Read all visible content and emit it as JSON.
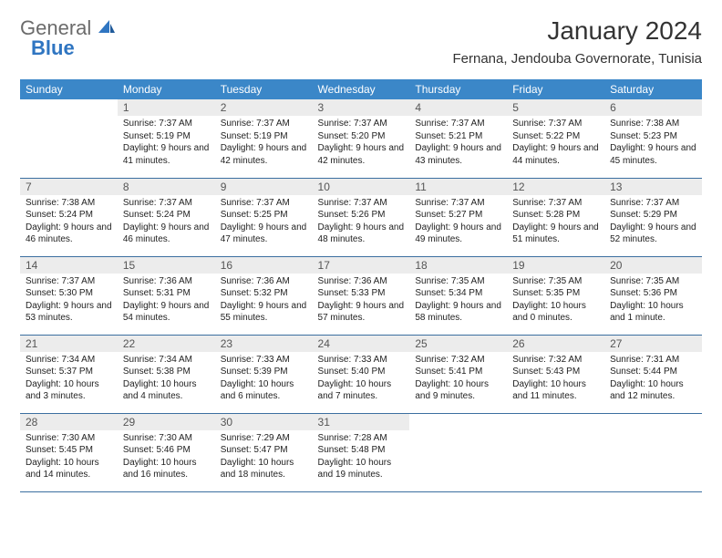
{
  "logo": {
    "general": "General",
    "blue": "Blue"
  },
  "title": "January 2024",
  "location": "Fernana, Jendouba Governorate, Tunisia",
  "colors": {
    "header_bg": "#3b87c8",
    "header_text": "#ffffff",
    "daynum_bg": "#ececec",
    "daynum_text": "#555555",
    "border": "#3b6fa0",
    "logo_gray": "#6b6b6b",
    "logo_blue": "#2f75c1"
  },
  "weekdays": [
    "Sunday",
    "Monday",
    "Tuesday",
    "Wednesday",
    "Thursday",
    "Friday",
    "Saturday"
  ],
  "weeks": [
    [
      {
        "day": "",
        "sunrise": "",
        "sunset": "",
        "daylight": ""
      },
      {
        "day": "1",
        "sunrise": "Sunrise: 7:37 AM",
        "sunset": "Sunset: 5:19 PM",
        "daylight": "Daylight: 9 hours and 41 minutes."
      },
      {
        "day": "2",
        "sunrise": "Sunrise: 7:37 AM",
        "sunset": "Sunset: 5:19 PM",
        "daylight": "Daylight: 9 hours and 42 minutes."
      },
      {
        "day": "3",
        "sunrise": "Sunrise: 7:37 AM",
        "sunset": "Sunset: 5:20 PM",
        "daylight": "Daylight: 9 hours and 42 minutes."
      },
      {
        "day": "4",
        "sunrise": "Sunrise: 7:37 AM",
        "sunset": "Sunset: 5:21 PM",
        "daylight": "Daylight: 9 hours and 43 minutes."
      },
      {
        "day": "5",
        "sunrise": "Sunrise: 7:37 AM",
        "sunset": "Sunset: 5:22 PM",
        "daylight": "Daylight: 9 hours and 44 minutes."
      },
      {
        "day": "6",
        "sunrise": "Sunrise: 7:38 AM",
        "sunset": "Sunset: 5:23 PM",
        "daylight": "Daylight: 9 hours and 45 minutes."
      }
    ],
    [
      {
        "day": "7",
        "sunrise": "Sunrise: 7:38 AM",
        "sunset": "Sunset: 5:24 PM",
        "daylight": "Daylight: 9 hours and 46 minutes."
      },
      {
        "day": "8",
        "sunrise": "Sunrise: 7:37 AM",
        "sunset": "Sunset: 5:24 PM",
        "daylight": "Daylight: 9 hours and 46 minutes."
      },
      {
        "day": "9",
        "sunrise": "Sunrise: 7:37 AM",
        "sunset": "Sunset: 5:25 PM",
        "daylight": "Daylight: 9 hours and 47 minutes."
      },
      {
        "day": "10",
        "sunrise": "Sunrise: 7:37 AM",
        "sunset": "Sunset: 5:26 PM",
        "daylight": "Daylight: 9 hours and 48 minutes."
      },
      {
        "day": "11",
        "sunrise": "Sunrise: 7:37 AM",
        "sunset": "Sunset: 5:27 PM",
        "daylight": "Daylight: 9 hours and 49 minutes."
      },
      {
        "day": "12",
        "sunrise": "Sunrise: 7:37 AM",
        "sunset": "Sunset: 5:28 PM",
        "daylight": "Daylight: 9 hours and 51 minutes."
      },
      {
        "day": "13",
        "sunrise": "Sunrise: 7:37 AM",
        "sunset": "Sunset: 5:29 PM",
        "daylight": "Daylight: 9 hours and 52 minutes."
      }
    ],
    [
      {
        "day": "14",
        "sunrise": "Sunrise: 7:37 AM",
        "sunset": "Sunset: 5:30 PM",
        "daylight": "Daylight: 9 hours and 53 minutes."
      },
      {
        "day": "15",
        "sunrise": "Sunrise: 7:36 AM",
        "sunset": "Sunset: 5:31 PM",
        "daylight": "Daylight: 9 hours and 54 minutes."
      },
      {
        "day": "16",
        "sunrise": "Sunrise: 7:36 AM",
        "sunset": "Sunset: 5:32 PM",
        "daylight": "Daylight: 9 hours and 55 minutes."
      },
      {
        "day": "17",
        "sunrise": "Sunrise: 7:36 AM",
        "sunset": "Sunset: 5:33 PM",
        "daylight": "Daylight: 9 hours and 57 minutes."
      },
      {
        "day": "18",
        "sunrise": "Sunrise: 7:35 AM",
        "sunset": "Sunset: 5:34 PM",
        "daylight": "Daylight: 9 hours and 58 minutes."
      },
      {
        "day": "19",
        "sunrise": "Sunrise: 7:35 AM",
        "sunset": "Sunset: 5:35 PM",
        "daylight": "Daylight: 10 hours and 0 minutes."
      },
      {
        "day": "20",
        "sunrise": "Sunrise: 7:35 AM",
        "sunset": "Sunset: 5:36 PM",
        "daylight": "Daylight: 10 hours and 1 minute."
      }
    ],
    [
      {
        "day": "21",
        "sunrise": "Sunrise: 7:34 AM",
        "sunset": "Sunset: 5:37 PM",
        "daylight": "Daylight: 10 hours and 3 minutes."
      },
      {
        "day": "22",
        "sunrise": "Sunrise: 7:34 AM",
        "sunset": "Sunset: 5:38 PM",
        "daylight": "Daylight: 10 hours and 4 minutes."
      },
      {
        "day": "23",
        "sunrise": "Sunrise: 7:33 AM",
        "sunset": "Sunset: 5:39 PM",
        "daylight": "Daylight: 10 hours and 6 minutes."
      },
      {
        "day": "24",
        "sunrise": "Sunrise: 7:33 AM",
        "sunset": "Sunset: 5:40 PM",
        "daylight": "Daylight: 10 hours and 7 minutes."
      },
      {
        "day": "25",
        "sunrise": "Sunrise: 7:32 AM",
        "sunset": "Sunset: 5:41 PM",
        "daylight": "Daylight: 10 hours and 9 minutes."
      },
      {
        "day": "26",
        "sunrise": "Sunrise: 7:32 AM",
        "sunset": "Sunset: 5:43 PM",
        "daylight": "Daylight: 10 hours and 11 minutes."
      },
      {
        "day": "27",
        "sunrise": "Sunrise: 7:31 AM",
        "sunset": "Sunset: 5:44 PM",
        "daylight": "Daylight: 10 hours and 12 minutes."
      }
    ],
    [
      {
        "day": "28",
        "sunrise": "Sunrise: 7:30 AM",
        "sunset": "Sunset: 5:45 PM",
        "daylight": "Daylight: 10 hours and 14 minutes."
      },
      {
        "day": "29",
        "sunrise": "Sunrise: 7:30 AM",
        "sunset": "Sunset: 5:46 PM",
        "daylight": "Daylight: 10 hours and 16 minutes."
      },
      {
        "day": "30",
        "sunrise": "Sunrise: 7:29 AM",
        "sunset": "Sunset: 5:47 PM",
        "daylight": "Daylight: 10 hours and 18 minutes."
      },
      {
        "day": "31",
        "sunrise": "Sunrise: 7:28 AM",
        "sunset": "Sunset: 5:48 PM",
        "daylight": "Daylight: 10 hours and 19 minutes."
      },
      {
        "day": "",
        "sunrise": "",
        "sunset": "",
        "daylight": ""
      },
      {
        "day": "",
        "sunrise": "",
        "sunset": "",
        "daylight": ""
      },
      {
        "day": "",
        "sunrise": "",
        "sunset": "",
        "daylight": ""
      }
    ]
  ]
}
